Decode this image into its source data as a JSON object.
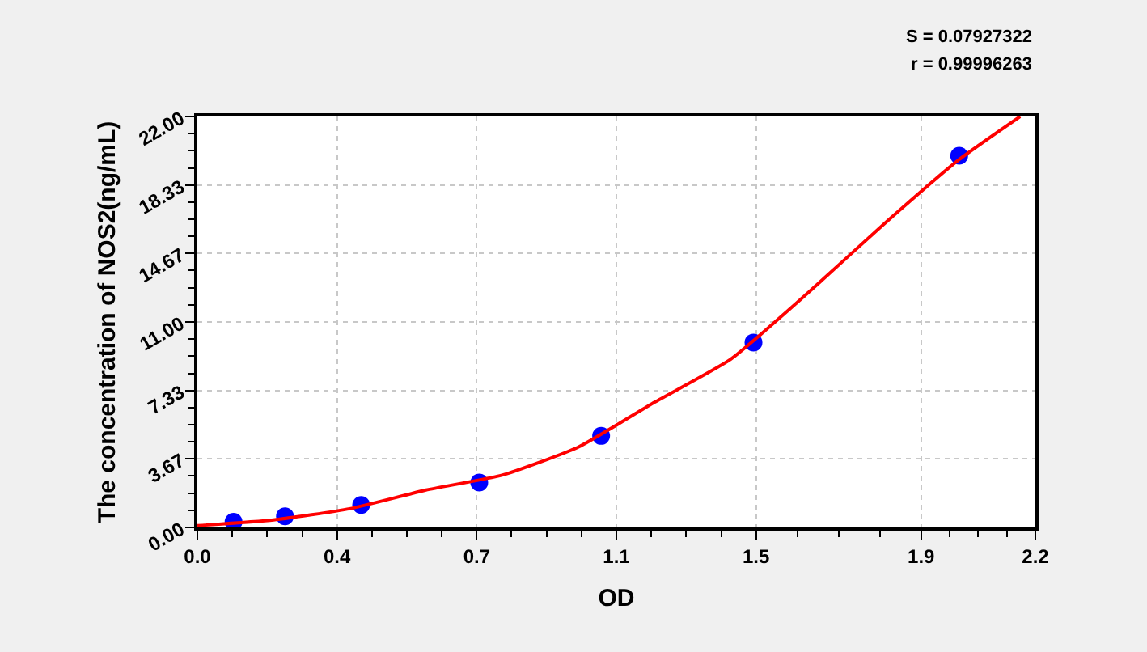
{
  "chart_data": {
    "type": "scatter",
    "xlabel": "OD",
    "ylabel": "The concentration of NOS2(ng/mL)",
    "annotations": [
      "S = 0.07927322",
      "r = 0.99996263"
    ],
    "series": [
      {
        "type": "scatter",
        "color": "#0000ff",
        "marker": "circle",
        "x": [
          0.095,
          0.23,
          0.43,
          0.74,
          1.06,
          1.46,
          2.0
        ],
        "values": [
          0.3,
          0.6,
          1.2,
          2.4,
          4.9,
          9.9,
          19.9
        ]
      },
      {
        "type": "line",
        "color": "#ff0000",
        "marker": "none",
        "line_style": "solid",
        "x": [
          0.0,
          0.2,
          0.4,
          0.6,
          0.8,
          1.0,
          1.2,
          1.4,
          1.6,
          1.8,
          2.0,
          2.16
        ],
        "values": [
          0.1,
          0.4,
          1.0,
          2.0,
          2.8,
          4.3,
          6.7,
          9.0,
          12.5,
          16.2,
          19.7,
          22.0
        ]
      }
    ],
    "xlim": [
      0,
      2.2
    ],
    "xticks": [
      {
        "value": 0,
        "label": "0.0"
      },
      {
        "value": 0.3667,
        "label": "0.4"
      },
      {
        "value": 0.7333,
        "label": "0.7"
      },
      1.1,
      {
        "value": 1.4667,
        "label": "1.5"
      },
      {
        "value": 1.9,
        "label": "1.9"
      },
      2.2
    ],
    "ylim": [
      0,
      22
    ],
    "yticks": [
      {
        "value": 0,
        "label": "0.00"
      },
      {
        "value": 3.67,
        "label": "3.67"
      },
      {
        "value": 7.33,
        "label": "7.33"
      },
      {
        "value": 11,
        "label": "11.00"
      },
      {
        "value": 14.67,
        "label": "14.67"
      },
      {
        "value": 18.33,
        "label": "18.33"
      },
      {
        "value": 22,
        "label": "22.00"
      }
    ],
    "grid": true
  }
}
